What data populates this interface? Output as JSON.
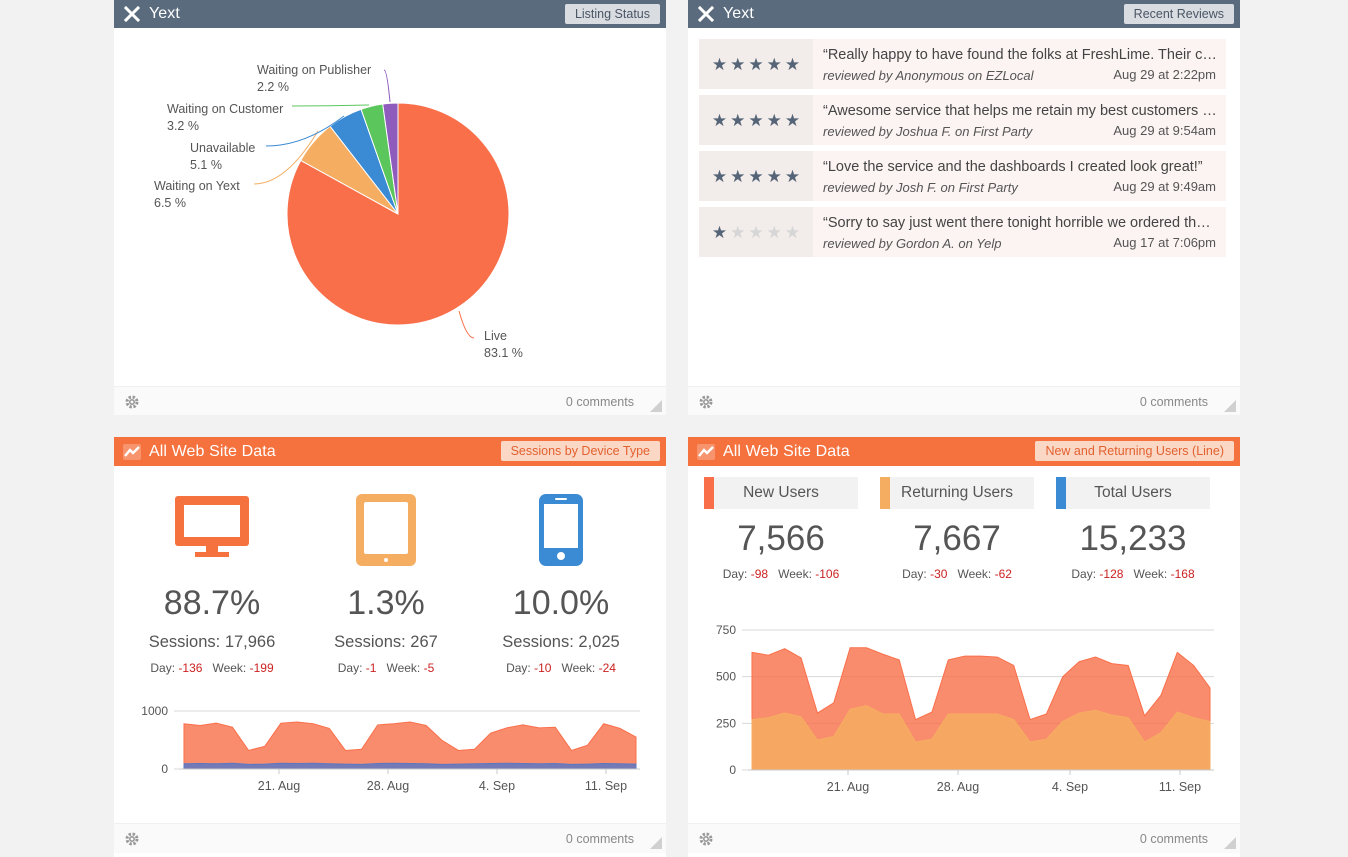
{
  "listing_widget": {
    "brand": "Yext",
    "header_button": "Listing Status",
    "footer_comments": "0 comments",
    "chart_data": {
      "type": "pie",
      "slices": [
        {
          "label": "Live",
          "value": 83.1,
          "value_text": "83.1 %",
          "color": "#f96f4a"
        },
        {
          "label": "Waiting on Yext",
          "value": 6.5,
          "value_text": "6.5 %",
          "color": "#f5ad61"
        },
        {
          "label": "Unavailable",
          "value": 5.1,
          "value_text": "5.1 %",
          "color": "#3a8ad4"
        },
        {
          "label": "Waiting on Customer",
          "value": 3.2,
          "value_text": "3.2 %",
          "color": "#5bc65c"
        },
        {
          "label": "Waiting on Publisher",
          "value": 2.2,
          "value_text": "2.2 %",
          "color": "#8f5bbd"
        }
      ]
    }
  },
  "reviews_widget": {
    "brand": "Yext",
    "header_button": "Recent Reviews",
    "footer_comments": "0 comments",
    "reviews": [
      {
        "rating": 5,
        "quote": "“Really happy to have found the folks at FreshLime. Their customer service has been outstanding.”",
        "by": "reviewed by Anonymous on EZLocal",
        "when": "Aug 29 at 2:22pm"
      },
      {
        "rating": 5,
        "quote": "“Awesome service that helps me retain my best customers and keep them coming back.”",
        "by": "reviewed by Joshua F. on First Party",
        "when": "Aug 29 at 9:54am"
      },
      {
        "rating": 5,
        "quote": "“Love the service and the dashboards I created look great!”",
        "by": "reviewed by Josh F. on First Party",
        "when": "Aug 29 at 9:49am"
      },
      {
        "rating": 1,
        "quote": "“Sorry to say just went there tonight horrible we ordered the food and waited a very long time.”",
        "by": "reviewed by Gordon A. on Yelp",
        "when": "Aug 17 at 7:06pm"
      }
    ]
  },
  "devices_widget": {
    "title": "All Web Site Data",
    "header_button": "Sessions by Device Type",
    "footer_comments": "0 comments",
    "day_label": "Day:",
    "week_label": "Week:",
    "devices": [
      {
        "icon": "desktop-icon",
        "color": "#f5713d",
        "pct": "88.7%",
        "sessions": "Sessions: 17,966",
        "day": "-136",
        "week": "-199"
      },
      {
        "icon": "tablet-icon",
        "color": "#f5ad61",
        "pct": "1.3%",
        "sessions": "Sessions: 267",
        "day": "-1",
        "week": "-5"
      },
      {
        "icon": "mobile-icon",
        "color": "#3a8ad4",
        "pct": "10.0%",
        "sessions": "Sessions: 2,025",
        "day": "-10",
        "week": "-24"
      }
    ],
    "chart_data": {
      "type": "area",
      "x_ticks": [
        "21. Aug",
        "28. Aug",
        "4. Sep",
        "11. Sep"
      ],
      "y_ticks": [
        "0",
        "1000"
      ],
      "ylim": [
        0,
        1000
      ],
      "series": [
        {
          "color": "#f96f4a",
          "values": [
            780,
            750,
            790,
            720,
            320,
            390,
            790,
            810,
            780,
            700,
            320,
            340,
            760,
            780,
            810,
            750,
            490,
            320,
            340,
            620,
            710,
            760,
            710,
            720,
            320,
            410,
            780,
            700,
            550
          ]
        },
        {
          "color": "#5b77c2",
          "values": [
            90,
            95,
            90,
            100,
            80,
            85,
            100,
            95,
            100,
            90,
            85,
            80,
            95,
            100,
            95,
            90,
            80,
            85,
            90,
            95,
            100,
            95,
            90,
            95,
            80,
            85,
            95,
            90,
            85
          ]
        }
      ]
    }
  },
  "users_widget": {
    "title": "All Web Site Data",
    "header_button": "New and Returning Users (Line)",
    "footer_comments": "0 comments",
    "day_label": "Day:",
    "week_label": "Week:",
    "stats": [
      {
        "label": "New Users",
        "color": "#f96f4a",
        "value": "7,566",
        "day": "-98",
        "week": "-106"
      },
      {
        "label": "Returning Users",
        "color": "#f5ad61",
        "value": "7,667",
        "day": "-30",
        "week": "-62"
      },
      {
        "label": "Total Users",
        "color": "#3a8ad4",
        "value": "15,233",
        "day": "-128",
        "week": "-168"
      }
    ],
    "chart_data": {
      "type": "area",
      "x_ticks": [
        "21. Aug",
        "28. Aug",
        "4. Sep",
        "11. Sep"
      ],
      "y_ticks": [
        "0",
        "250",
        "500",
        "750"
      ],
      "ylim": [
        0,
        750
      ],
      "series": [
        {
          "name": "New Users",
          "color": "#f96f4a",
          "values": [
            630,
            615,
            650,
            600,
            305,
            360,
            655,
            655,
            620,
            590,
            270,
            310,
            590,
            610,
            610,
            605,
            560,
            270,
            300,
            500,
            580,
            605,
            570,
            560,
            290,
            400,
            630,
            560,
            440
          ]
        },
        {
          "name": "Returning Users",
          "color": "#f5ad61",
          "values": [
            270,
            280,
            305,
            285,
            160,
            180,
            325,
            345,
            300,
            300,
            150,
            165,
            300,
            300,
            300,
            300,
            270,
            150,
            165,
            260,
            305,
            320,
            295,
            280,
            150,
            200,
            310,
            280,
            260
          ]
        }
      ]
    }
  }
}
